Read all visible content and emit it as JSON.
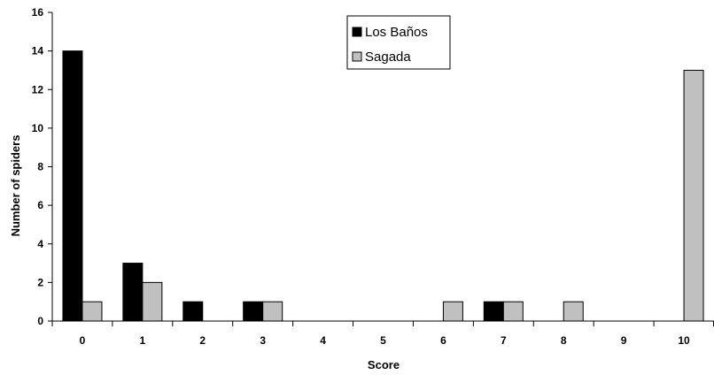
{
  "chart_data": {
    "type": "bar",
    "title": "",
    "xlabel": "Score",
    "ylabel": "Number of spiders",
    "categories": [
      "0",
      "1",
      "2",
      "3",
      "4",
      "5",
      "6",
      "7",
      "8",
      "9",
      "10"
    ],
    "series": [
      {
        "name": "Los Baños",
        "color": "#000000",
        "values": [
          14,
          3,
          1,
          1,
          0,
          0,
          0,
          1,
          0,
          0,
          0
        ]
      },
      {
        "name": "Sagada",
        "color": "#c0c0c0",
        "values": [
          1,
          2,
          0,
          1,
          0,
          0,
          1,
          1,
          1,
          0,
          13
        ]
      }
    ],
    "ylim": [
      0,
      16
    ],
    "yticks": [
      "0",
      "2",
      "4",
      "6",
      "8",
      "10",
      "12",
      "14",
      "16"
    ],
    "grid": false,
    "legend_position": "top-center"
  }
}
